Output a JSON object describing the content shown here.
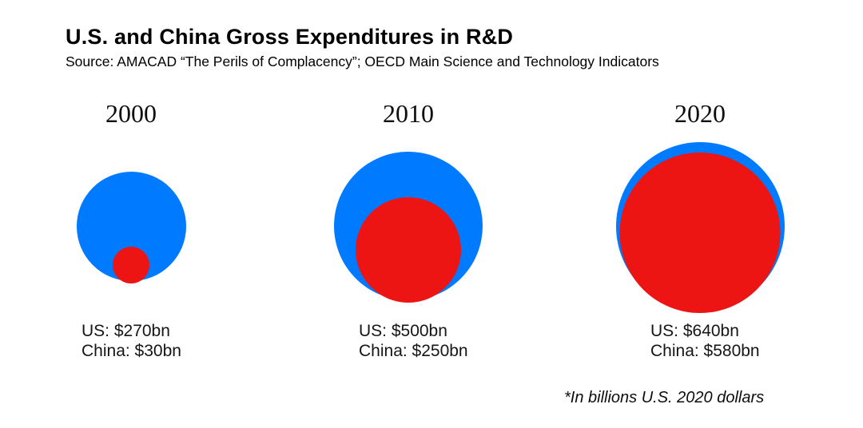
{
  "header": {
    "title": "U.S. and China Gross Expenditures in R&D",
    "subtitle": "Source: AMACAD “The Perils of Complacency”; OECD Main Science and Technology Indicators"
  },
  "footnote": "*In billions U.S. 2020 dollars",
  "colors": {
    "us": "#007bff",
    "china": "#ed1414"
  },
  "chart_data": {
    "type": "bubble",
    "title": "U.S. and China Gross Expenditures in R&D",
    "unit": "billions U.S. 2020 dollars",
    "series_names": [
      "US",
      "China"
    ],
    "scale": "circle area proportional to value, nested circles aligned at bottom",
    "groups": [
      {
        "year": "2000",
        "us_value": 270,
        "china_value": 30,
        "us_label": "US: $270bn",
        "china_label": "China: $30bn"
      },
      {
        "year": "2010",
        "us_value": 500,
        "china_value": 250,
        "us_label": "US: $500bn",
        "china_label": "China: $250bn"
      },
      {
        "year": "2020",
        "us_value": 640,
        "china_value": 580,
        "us_label": "US: $640bn",
        "china_label": "China: $580bn"
      }
    ]
  }
}
